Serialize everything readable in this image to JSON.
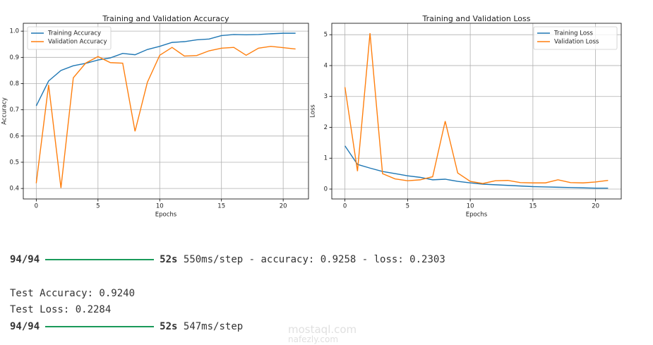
{
  "chart_data": [
    {
      "type": "line",
      "title": "Training and Validation Accuracy",
      "xlabel": "Epochs",
      "ylabel": "Accuracy",
      "x": [
        0,
        1,
        2,
        3,
        4,
        5,
        6,
        7,
        8,
        9,
        10,
        11,
        12,
        13,
        14,
        15,
        16,
        17,
        18,
        19,
        20,
        21
      ],
      "series": [
        {
          "name": "Training Accuracy",
          "color": "#1f77b4",
          "values": [
            0.715,
            0.81,
            0.85,
            0.868,
            0.877,
            0.89,
            0.898,
            0.915,
            0.91,
            0.93,
            0.942,
            0.957,
            0.96,
            0.967,
            0.97,
            0.983,
            0.987,
            0.986,
            0.987,
            0.99,
            0.992,
            0.992
          ]
        },
        {
          "name": "Validation Accuracy",
          "color": "#ff7f0e",
          "values": [
            0.42,
            0.795,
            0.402,
            0.822,
            0.878,
            0.903,
            0.88,
            0.878,
            0.618,
            0.805,
            0.908,
            0.938,
            0.905,
            0.907,
            0.925,
            0.935,
            0.938,
            0.908,
            0.935,
            0.942,
            0.937,
            0.932
          ]
        }
      ],
      "xlim": [
        -1.05,
        22.05
      ],
      "xticks": [
        0,
        5,
        10,
        15,
        20
      ],
      "ylim": [
        0.36,
        1.03
      ],
      "yticks": [
        0.4,
        0.5,
        0.6,
        0.7,
        0.8,
        0.9,
        {
          "value": 1,
          "label": "1.0"
        }
      ],
      "grid": true,
      "legend": "upper left"
    },
    {
      "type": "line",
      "title": "Training and Validation Loss",
      "xlabel": "Epochs",
      "ylabel": "Loss",
      "x": [
        0,
        1,
        2,
        3,
        4,
        5,
        6,
        7,
        8,
        9,
        10,
        11,
        12,
        13,
        14,
        15,
        16,
        17,
        18,
        19,
        20,
        21
      ],
      "series": [
        {
          "name": "Training Loss",
          "color": "#1f77b4",
          "values": [
            1.4,
            0.8,
            0.68,
            0.57,
            0.5,
            0.43,
            0.38,
            0.3,
            0.32,
            0.25,
            0.2,
            0.16,
            0.14,
            0.12,
            0.1,
            0.08,
            0.07,
            0.06,
            0.05,
            0.04,
            0.03,
            0.03
          ]
        },
        {
          "name": "Validation Loss",
          "color": "#ff7f0e",
          "values": [
            3.3,
            0.58,
            5.05,
            0.5,
            0.33,
            0.27,
            0.3,
            0.4,
            2.2,
            0.52,
            0.25,
            0.18,
            0.27,
            0.28,
            0.21,
            0.2,
            0.2,
            0.3,
            0.21,
            0.2,
            0.23,
            0.28
          ]
        }
      ],
      "xlim": [
        -1.05,
        22.05
      ],
      "xticks": [
        0,
        5,
        10,
        15,
        20
      ],
      "ylim": [
        -0.32,
        5.37
      ],
      "yticks": [
        0,
        1,
        2,
        3,
        4,
        5
      ],
      "grid": true,
      "legend": "upper right"
    }
  ],
  "output": {
    "progress_1": {
      "steps": "94/94",
      "time": "52s",
      "rest": "550ms/step - accuracy: 0.9258 - loss: 0.2303"
    },
    "test_accuracy": "Test Accuracy: 0.9240",
    "test_loss": "Test Loss: 0.2284",
    "progress_2": {
      "steps": "94/94",
      "time": "52s",
      "rest": "547ms/step"
    }
  },
  "watermark": {
    "site_1": "mostaql.com",
    "site_2": "nafezly.com"
  }
}
